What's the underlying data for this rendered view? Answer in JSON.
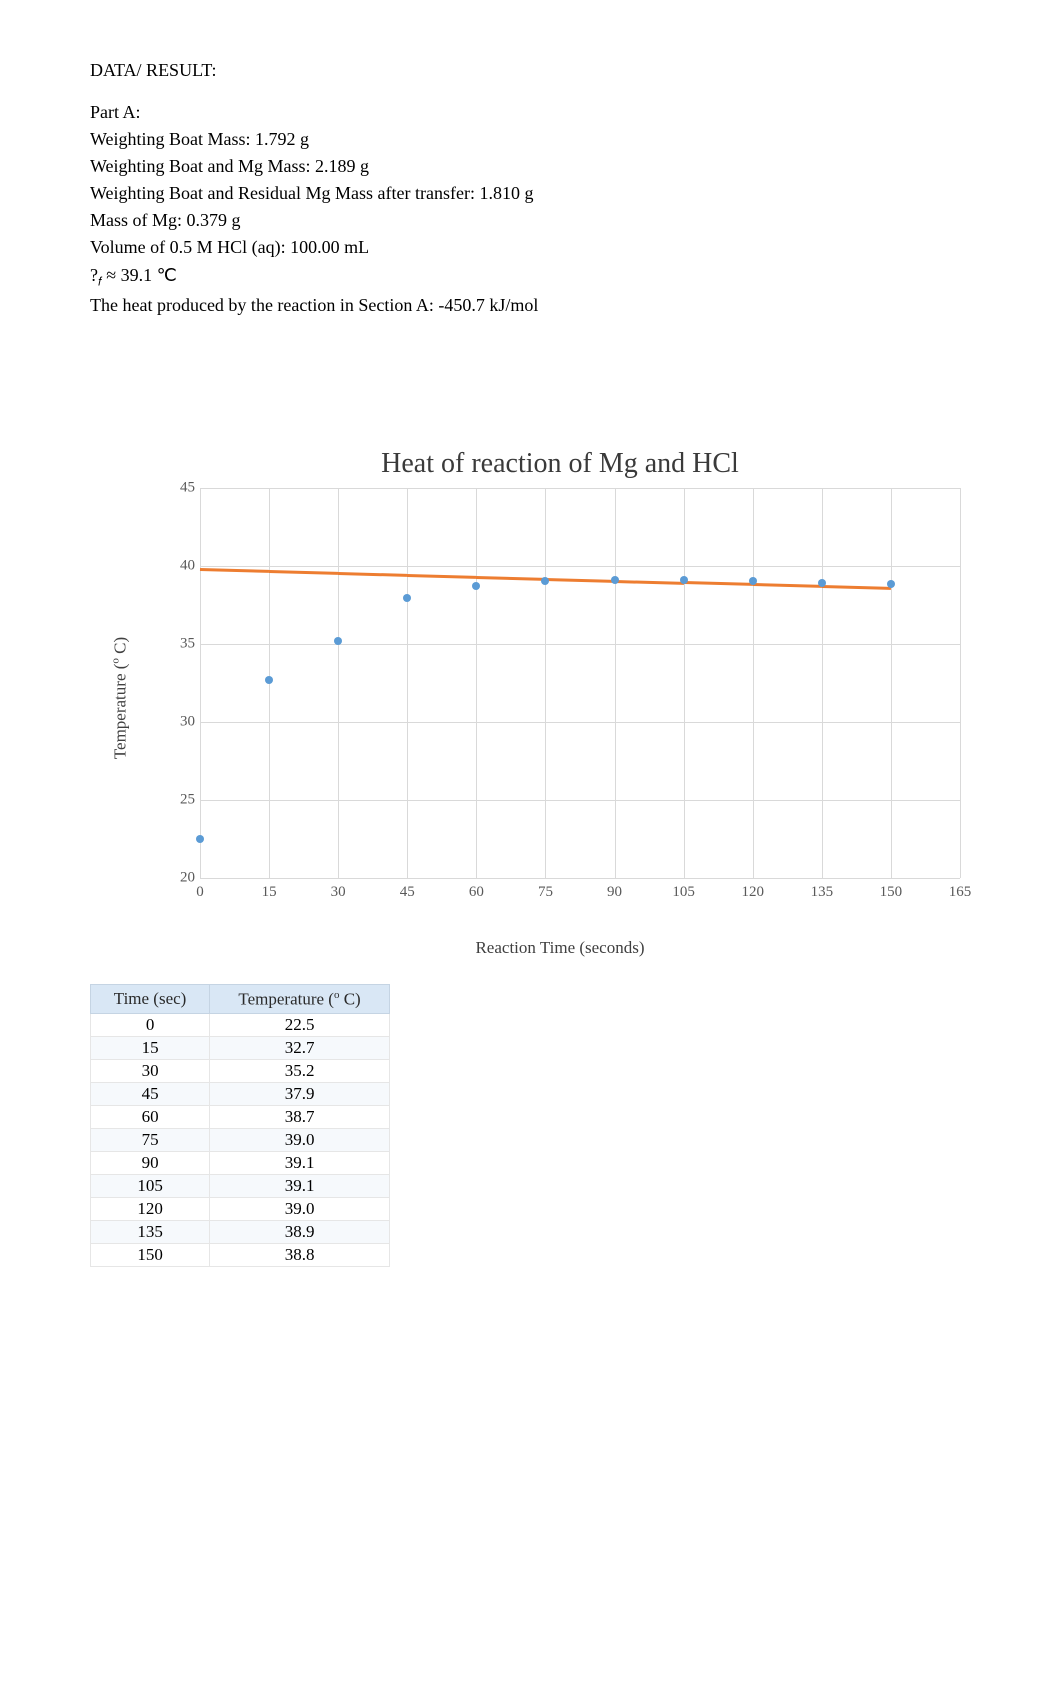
{
  "heading": "DATA/ RESULT:",
  "partA": {
    "title": "Part A:",
    "lines": [
      "Weighting Boat Mass: 1.792 g",
      "Weighting Boat and Mg Mass: 2.189 g",
      "Weighting Boat and Residual Mg Mass after transfer: 1.810 g",
      "Mass of Mg: 0.379 g",
      "Volume of 0.5 M HCl (aq): 100.00 mL"
    ],
    "tf_line_prefix": "?",
    "tf_line_sub": "𝑓",
    "tf_line_rest": " ≈ 39.1 ℃",
    "heat_line": "The heat produced by the reaction in Section A: -450.7   kJ/mol"
  },
  "chart": {
    "type": "scatter-line",
    "title": "Heat of reaction of Mg and HCl",
    "xlabel": "Reaction Time (seconds)",
    "ylabel_prefix": "Temperature (",
    "ylabel_sup": "o",
    "ylabel_suffix": " C)",
    "xlim": [
      0,
      165
    ],
    "ylim": [
      20,
      45
    ],
    "xtick_step": 15,
    "ytick_step": 5,
    "xticks": [
      0,
      15,
      30,
      45,
      60,
      75,
      90,
      105,
      120,
      135,
      150,
      165
    ],
    "yticks": [
      20,
      25,
      30,
      35,
      40,
      45
    ],
    "grid_color": "#d9d9d9",
    "background_color": "#ffffff",
    "tick_color": "#595959",
    "label_color": "#404040",
    "title_fontsize": 28,
    "label_fontsize": 17,
    "tick_fontsize": 15,
    "series": {
      "scatter": {
        "color": "#5b9bd5",
        "marker_size": 8,
        "x": [
          0,
          15,
          30,
          45,
          60,
          75,
          90,
          105,
          120,
          135,
          150
        ],
        "y": [
          22.5,
          32.7,
          35.2,
          37.9,
          38.7,
          39.0,
          39.1,
          39.1,
          39.0,
          38.9,
          38.8
        ]
      },
      "trendline": {
        "color": "#ed7d31",
        "width": 2.5,
        "x": [
          0,
          15,
          30,
          45,
          60,
          75,
          90,
          105,
          120,
          135,
          150
        ],
        "y": [
          39.75,
          39.63,
          39.51,
          39.39,
          39.27,
          39.15,
          39.03,
          38.91,
          38.79,
          38.67,
          38.55
        ]
      }
    }
  },
  "table": {
    "columns": [
      "Time (sec)",
      "Temperature (⁰ C)"
    ],
    "col1_header": "Time (sec)",
    "col2_header_prefix": "Temperature (",
    "col2_header_sup": "o",
    "col2_header_suffix": " C)",
    "header_bg": "#d9e7f5",
    "header_border": "#c5d4e3",
    "row_border": "#e6e6e6",
    "alt_row_bg": "#f6f9fc",
    "rows": [
      [
        "0",
        "22.5"
      ],
      [
        "15",
        "32.7"
      ],
      [
        "30",
        "35.2"
      ],
      [
        "45",
        "37.9"
      ],
      [
        "60",
        "38.7"
      ],
      [
        "75",
        "39.0"
      ],
      [
        "90",
        "39.1"
      ],
      [
        "105",
        "39.1"
      ],
      [
        "120",
        "39.0"
      ],
      [
        "135",
        "38.9"
      ],
      [
        "150",
        "38.8"
      ]
    ]
  }
}
